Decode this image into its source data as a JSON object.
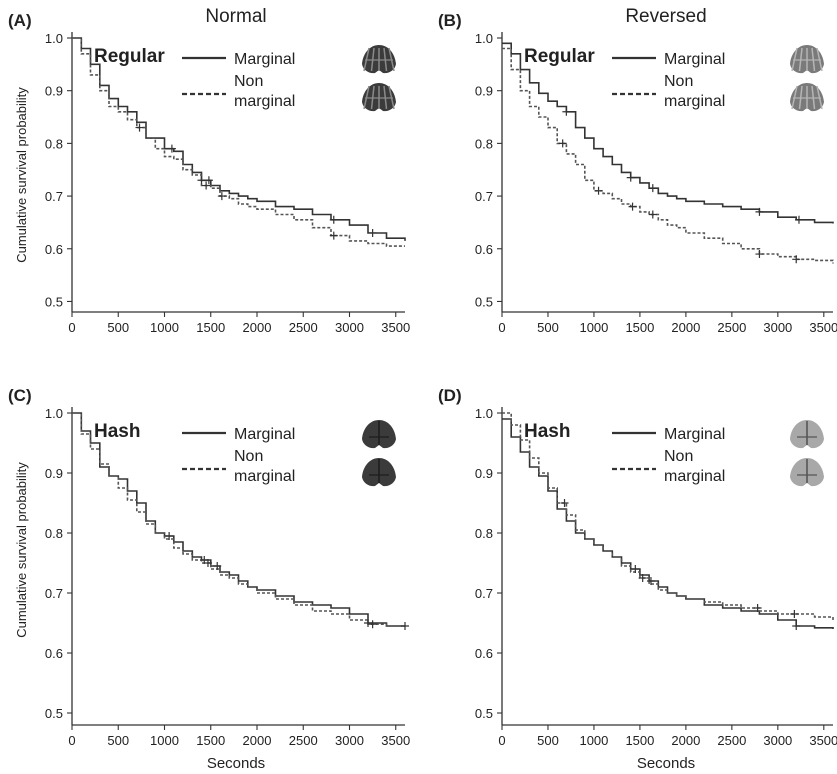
{
  "figure": {
    "column_titles": [
      "Normal",
      "Reversed"
    ],
    "xlabel": "Seconds",
    "ylabel": "Cumulative survival probability"
  },
  "icon_colors": {
    "dark": "#3b3b3b",
    "mid": "#7a7a7a",
    "light": "#a8a8a8"
  },
  "chart_data": [
    {
      "type": "line",
      "panel": "(A)",
      "inset_label": "Regular",
      "xlim": [
        0,
        3600
      ],
      "ylim": [
        0.48,
        1.0
      ],
      "xticks": [
        0,
        500,
        1000,
        1500,
        2000,
        2500,
        3000,
        3500
      ],
      "yticks": [
        0.5,
        0.6,
        0.7,
        0.8,
        0.9,
        1.0
      ],
      "ytick_labels": [
        "0.5",
        "0.6",
        "0.7",
        "0.8",
        "0.9",
        "1.0"
      ],
      "legend": [
        {
          "label": "Marginal",
          "style": "solid"
        },
        {
          "label_lines": [
            "Non",
            "marginal"
          ],
          "style": "dashed"
        }
      ],
      "icons": [
        "pattern-regular-dark-icon",
        "pattern-regular-dark-icon"
      ],
      "series": [
        {
          "name": "Marginal",
          "style": "solid",
          "x": [
            0,
            100,
            200,
            300,
            400,
            500,
            600,
            700,
            800,
            900,
            1000,
            1100,
            1200,
            1300,
            1400,
            1500,
            1600,
            1700,
            1800,
            1900,
            2000,
            2200,
            2400,
            2600,
            2800,
            3000,
            3200,
            3400,
            3600
          ],
          "y": [
            1.0,
            0.98,
            0.95,
            0.91,
            0.885,
            0.87,
            0.86,
            0.84,
            0.81,
            0.81,
            0.79,
            0.785,
            0.76,
            0.745,
            0.73,
            0.72,
            0.71,
            0.705,
            0.7,
            0.695,
            0.69,
            0.68,
            0.675,
            0.665,
            0.655,
            0.645,
            0.63,
            0.62,
            0.615
          ]
        },
        {
          "name": "Non marginal",
          "style": "dashed",
          "x": [
            0,
            100,
            200,
            300,
            400,
            500,
            600,
            700,
            800,
            900,
            1000,
            1100,
            1200,
            1300,
            1400,
            1500,
            1600,
            1700,
            1800,
            1900,
            2000,
            2200,
            2400,
            2600,
            2800,
            3000,
            3200,
            3400,
            3600
          ],
          "y": [
            1.0,
            0.97,
            0.93,
            0.9,
            0.87,
            0.86,
            0.845,
            0.83,
            0.81,
            0.79,
            0.775,
            0.77,
            0.75,
            0.74,
            0.72,
            0.715,
            0.7,
            0.695,
            0.685,
            0.68,
            0.675,
            0.665,
            0.655,
            0.64,
            0.625,
            0.615,
            0.61,
            0.605,
            0.605
          ]
        }
      ],
      "censor_marks": [
        {
          "series": 0,
          "x": [
            1080,
            1400,
            1480,
            2830,
            3250
          ]
        },
        {
          "series": 1,
          "x": [
            730,
            1450,
            1620,
            2830
          ]
        }
      ]
    },
    {
      "type": "line",
      "panel": "(B)",
      "inset_label": "Regular",
      "xlim": [
        0,
        3600
      ],
      "ylim": [
        0.48,
        1.0
      ],
      "xticks": [
        0,
        500,
        1000,
        1500,
        2000,
        2500,
        3000,
        3500
      ],
      "yticks": [
        0.5,
        0.6,
        0.7,
        0.8,
        0.9,
        1.0
      ],
      "ytick_labels": [
        "0.5",
        "0.6",
        "0.7",
        "0.8",
        "0.9",
        "1.0"
      ],
      "legend": [
        {
          "label": "Marginal",
          "style": "solid"
        },
        {
          "label_lines": [
            "Non",
            "marginal"
          ],
          "style": "dashed"
        }
      ],
      "icons": [
        "pattern-regular-light-icon",
        "pattern-regular-light-icon"
      ],
      "series": [
        {
          "name": "Marginal",
          "style": "solid",
          "x": [
            0,
            100,
            200,
            300,
            400,
            500,
            600,
            700,
            800,
            900,
            1000,
            1100,
            1200,
            1300,
            1400,
            1500,
            1600,
            1700,
            1800,
            1900,
            2000,
            2200,
            2400,
            2600,
            2800,
            3000,
            3200,
            3400,
            3600
          ],
          "y": [
            0.99,
            0.97,
            0.94,
            0.915,
            0.895,
            0.88,
            0.87,
            0.86,
            0.83,
            0.81,
            0.79,
            0.775,
            0.76,
            0.745,
            0.735,
            0.725,
            0.715,
            0.705,
            0.7,
            0.695,
            0.69,
            0.685,
            0.68,
            0.675,
            0.67,
            0.66,
            0.655,
            0.65,
            0.648
          ]
        },
        {
          "name": "Non marginal",
          "style": "dashed",
          "x": [
            0,
            100,
            200,
            300,
            400,
            500,
            600,
            700,
            800,
            900,
            1000,
            1100,
            1200,
            1300,
            1400,
            1500,
            1600,
            1700,
            1800,
            1900,
            2000,
            2200,
            2400,
            2600,
            2800,
            3000,
            3200,
            3400,
            3600
          ],
          "y": [
            0.98,
            0.94,
            0.9,
            0.87,
            0.85,
            0.83,
            0.8,
            0.78,
            0.76,
            0.73,
            0.71,
            0.705,
            0.695,
            0.685,
            0.68,
            0.67,
            0.665,
            0.655,
            0.645,
            0.64,
            0.63,
            0.62,
            0.61,
            0.6,
            0.59,
            0.585,
            0.58,
            0.578,
            0.572
          ]
        }
      ],
      "censor_marks": [
        {
          "series": 0,
          "x": [
            700,
            1400,
            1640,
            2800,
            3230
          ]
        },
        {
          "series": 1,
          "x": [
            660,
            1050,
            1420,
            1640,
            2800,
            3200
          ]
        }
      ]
    },
    {
      "type": "line",
      "panel": "(C)",
      "inset_label": "Hash",
      "xlim": [
        0,
        3600
      ],
      "ylim": [
        0.48,
        1.0
      ],
      "xticks": [
        0,
        500,
        1000,
        1500,
        2000,
        2500,
        3000,
        3500
      ],
      "yticks": [
        0.5,
        0.6,
        0.7,
        0.8,
        0.9,
        1.0
      ],
      "ytick_labels": [
        "0.5",
        "0.6",
        "0.7",
        "0.8",
        "0.9",
        "1.0"
      ],
      "legend": [
        {
          "label": "Marginal",
          "style": "solid"
        },
        {
          "label_lines": [
            "Non",
            "marginal"
          ],
          "style": "dashed"
        }
      ],
      "icons": [
        "pattern-hash-dark-icon",
        "pattern-hash-dark-icon"
      ],
      "series": [
        {
          "name": "Marginal",
          "style": "solid",
          "x": [
            0,
            100,
            200,
            300,
            400,
            500,
            600,
            700,
            800,
            900,
            1000,
            1100,
            1200,
            1300,
            1400,
            1500,
            1600,
            1700,
            1800,
            1900,
            2000,
            2200,
            2400,
            2600,
            2800,
            3000,
            3200,
            3400,
            3600
          ],
          "y": [
            1.0,
            0.97,
            0.95,
            0.91,
            0.895,
            0.89,
            0.87,
            0.85,
            0.82,
            0.8,
            0.795,
            0.785,
            0.77,
            0.76,
            0.755,
            0.745,
            0.735,
            0.73,
            0.72,
            0.71,
            0.705,
            0.695,
            0.685,
            0.68,
            0.675,
            0.665,
            0.65,
            0.645,
            0.645
          ]
        },
        {
          "name": "Non marginal",
          "style": "dashed",
          "x": [
            0,
            100,
            200,
            300,
            400,
            500,
            600,
            700,
            800,
            900,
            1000,
            1100,
            1200,
            1300,
            1400,
            1500,
            1600,
            1700,
            1800,
            1900,
            2000,
            2200,
            2400,
            2600,
            2800,
            3000,
            3200,
            3400,
            3600
          ],
          "y": [
            1.0,
            0.965,
            0.94,
            0.915,
            0.895,
            0.875,
            0.855,
            0.835,
            0.815,
            0.8,
            0.79,
            0.775,
            0.765,
            0.755,
            0.75,
            0.74,
            0.73,
            0.725,
            0.715,
            0.71,
            0.7,
            0.69,
            0.68,
            0.67,
            0.665,
            0.655,
            0.648,
            0.645,
            0.645
          ]
        }
      ],
      "censor_marks": [
        {
          "series": 0,
          "x": [
            1050,
            1430,
            1570,
            3200
          ]
        },
        {
          "series": 1,
          "x": [
            1470,
            3250,
            3600
          ]
        }
      ]
    },
    {
      "type": "line",
      "panel": "(D)",
      "inset_label": "Hash",
      "xlim": [
        0,
        3600
      ],
      "ylim": [
        0.48,
        1.0
      ],
      "xticks": [
        0,
        500,
        1000,
        1500,
        2000,
        2500,
        3000,
        3500
      ],
      "xtick_labels": [
        "0",
        "500",
        "1000",
        "1500",
        "2000",
        "2500",
        "3000",
        "3500"
      ],
      "yticks": [
        0.5,
        0.6,
        0.7,
        0.8,
        0.9,
        1.0
      ],
      "ytick_labels": [
        "0.5",
        "0.6",
        "0.7",
        "0.8",
        "0.9",
        "1.0"
      ],
      "legend": [
        {
          "label": "Marginal",
          "style": "solid"
        },
        {
          "label_lines": [
            "Non",
            "marginal"
          ],
          "style": "dashed"
        }
      ],
      "icons": [
        "pattern-hash-light-icon",
        "pattern-hash-light-icon"
      ],
      "series": [
        {
          "name": "Marginal",
          "style": "solid",
          "x": [
            0,
            100,
            200,
            300,
            400,
            500,
            600,
            700,
            800,
            900,
            1000,
            1100,
            1200,
            1300,
            1400,
            1500,
            1600,
            1700,
            1800,
            1900,
            2000,
            2200,
            2400,
            2600,
            2800,
            3000,
            3200,
            3400,
            3600
          ],
          "y": [
            0.99,
            0.96,
            0.935,
            0.91,
            0.895,
            0.87,
            0.84,
            0.82,
            0.8,
            0.79,
            0.78,
            0.77,
            0.76,
            0.75,
            0.74,
            0.73,
            0.72,
            0.71,
            0.7,
            0.695,
            0.69,
            0.68,
            0.675,
            0.67,
            0.665,
            0.655,
            0.645,
            0.642,
            0.64
          ]
        },
        {
          "name": "Non marginal",
          "style": "dashed",
          "x": [
            0,
            100,
            200,
            300,
            400,
            500,
            600,
            700,
            800,
            900,
            1000,
            1100,
            1200,
            1300,
            1400,
            1500,
            1600,
            1700,
            1800,
            1900,
            2000,
            2200,
            2400,
            2600,
            2800,
            3000,
            3200,
            3400,
            3600
          ],
          "y": [
            1.0,
            0.98,
            0.955,
            0.925,
            0.9,
            0.875,
            0.85,
            0.83,
            0.805,
            0.79,
            0.78,
            0.77,
            0.76,
            0.745,
            0.735,
            0.725,
            0.715,
            0.705,
            0.7,
            0.695,
            0.69,
            0.685,
            0.68,
            0.675,
            0.67,
            0.665,
            0.665,
            0.66,
            0.655
          ]
        }
      ],
      "censor_marks": [
        {
          "series": 0,
          "x": [
            1450,
            1620,
            3200
          ]
        },
        {
          "series": 1,
          "x": [
            680,
            1530,
            2780,
            3180
          ]
        }
      ]
    }
  ]
}
